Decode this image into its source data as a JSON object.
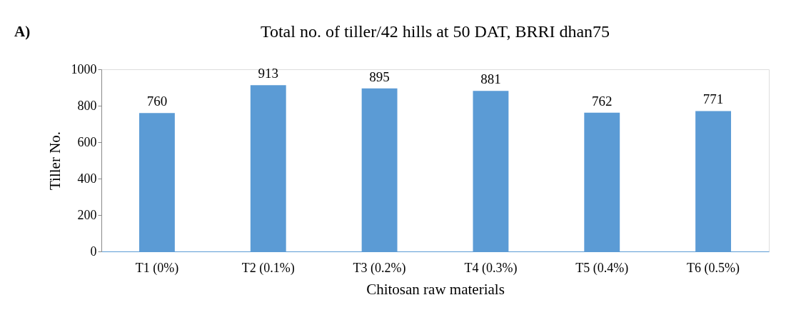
{
  "chart_data": {
    "type": "bar",
    "title": "Total no. of tiller/42 hills at 50 DAT, BRRI dhan75",
    "xlabel": "Chitosan raw materials",
    "ylabel": "Tiller No.",
    "categories": [
      "T1 (0%)",
      "T2 (0.1%)",
      "T3 (0.2%)",
      "T4 (0.3%)",
      "T5 (0.4%)",
      "T6 (0.5%)"
    ],
    "values": [
      760,
      913,
      895,
      881,
      762,
      771
    ],
    "color": "#5b9bd5",
    "ylim": [
      0,
      1000
    ],
    "yticks": [
      0,
      200,
      400,
      600,
      800,
      1000
    ],
    "grid": false,
    "data_labels": true,
    "annotations": [
      "A)"
    ]
  }
}
